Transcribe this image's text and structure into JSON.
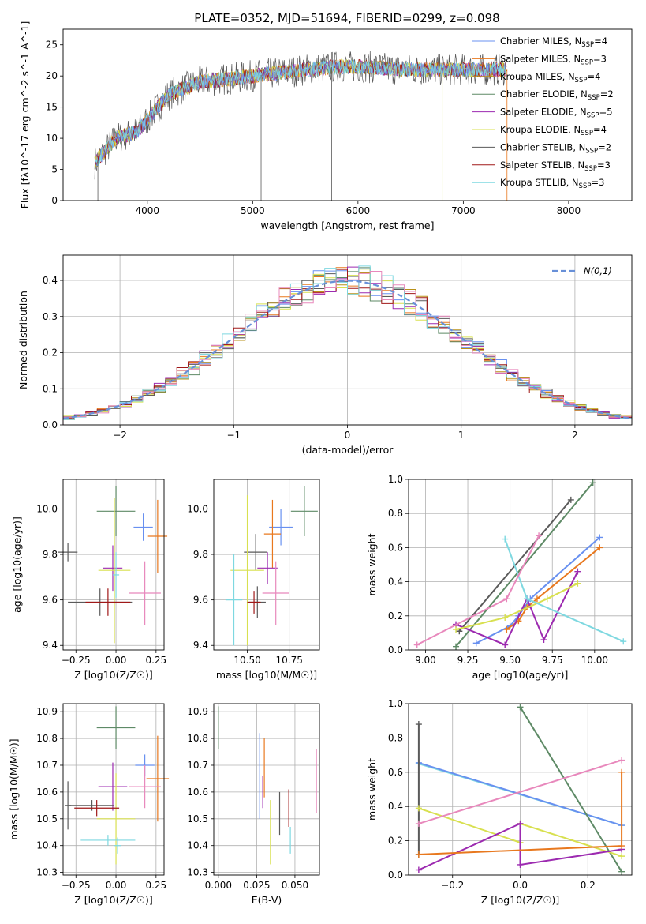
{
  "title": "PLATE=0352, MJD=51694, FIBERID=0299, z=0.098",
  "colors": [
    "#6890F0",
    "#E8781E",
    "#B89018",
    "#5E8A66",
    "#9C2AB0",
    "#D8E050",
    "#5A5A5A",
    "#A01818",
    "#7ED8E0"
  ],
  "extra_color": "#E888BC",
  "chart_data": [
    {
      "id": "spectrum",
      "type": "line",
      "xlabel": "wavelength [Angstrom, rest frame]",
      "ylabel": "Flux [fλ10^-17 erg cm^-2 s^-1 A^-1]",
      "xlim": [
        3200,
        8600
      ],
      "ylim": [
        0,
        27.5
      ],
      "xticks": [
        4000,
        5000,
        6000,
        7000,
        8000
      ],
      "yticks": [
        0,
        5,
        10,
        15,
        20,
        25
      ],
      "grid": false,
      "legend_position": "right",
      "legend": [
        "Chabrier MILES, N_SSP=4",
        "Salpeter MILES, N_SSP=3",
        "Kroupa MILES, N_SSP=4",
        "Chabrier ELODIE, N_SSP=2",
        "Salpeter ELODIE, N_SSP=5",
        "Kroupa ELODIE, N_SSP=4",
        "Chabrier STELIB, N_SSP=2",
        "Salpeter STELIB, N_SSP=3",
        "Kroupa STELIB, N_SSP=3"
      ],
      "continuum": {
        "x": [
          3500,
          3700,
          3900,
          4000,
          4200,
          4500,
          5000,
          5500,
          5800,
          6000,
          6500,
          7000,
          7400
        ],
        "y": [
          6,
          10,
          11,
          13,
          17,
          19,
          20,
          21,
          21.5,
          21.5,
          21,
          21,
          21
        ]
      }
    },
    {
      "id": "residuals",
      "type": "histogram",
      "xlabel": "(data-model)/error",
      "ylabel": "Normed distribution",
      "xlim": [
        -2.5,
        2.5
      ],
      "ylim": [
        0,
        0.47
      ],
      "xticks": [
        -2,
        -1,
        0,
        1,
        2
      ],
      "yticks": [
        0.0,
        0.1,
        0.2,
        0.3,
        0.4
      ],
      "grid": true,
      "legend": "N(0,1)",
      "legend_position": "top-right",
      "bins": {
        "start": -2.5,
        "width": 0.1,
        "count": 50
      }
    },
    {
      "id": "age_vs_Z",
      "type": "errorbar",
      "xlabel": "Z [log10(Z/Z☉)]",
      "ylabel": "age  [log10(age/yr)]",
      "xlim": [
        -0.33,
        0.3
      ],
      "ylim": [
        9.38,
        10.13
      ],
      "xticks": [
        -0.25,
        0.0,
        0.25
      ],
      "yticks": [
        9.4,
        9.6,
        9.8,
        10.0
      ],
      "grid": true,
      "points": [
        {
          "x": 0.17,
          "y": 9.92,
          "xerr": 0.06,
          "yerr": 0.06,
          "color": 0
        },
        {
          "x": 0.26,
          "y": 9.88,
          "xerr": 0.06,
          "yerr": 0.16,
          "color": 1
        },
        {
          "x": 0.0,
          "y": 9.99,
          "xerr": 0.12,
          "yerr": 0.11,
          "color": 3
        },
        {
          "x": -0.3,
          "y": 9.81,
          "xerr": 0.06,
          "yerr": 0.04,
          "color": 6
        },
        {
          "x": -0.02,
          "y": 9.74,
          "xerr": 0.06,
          "yerr": 0.1,
          "color": 4
        },
        {
          "x": -0.01,
          "y": 9.73,
          "xerr": 0.1,
          "yerr": 0.32,
          "color": 5
        },
        {
          "x": 0.0,
          "y": 9.71,
          "xerr": 0.02,
          "yerr": 0.1,
          "color": 8
        },
        {
          "x": -0.1,
          "y": 9.59,
          "xerr": 0.2,
          "yerr": 0.06,
          "color": 6
        },
        {
          "x": -0.05,
          "y": 9.59,
          "xerr": 0.14,
          "yerr": 0.06,
          "color": 7
        },
        {
          "x": 0.18,
          "y": 9.63,
          "xerr": 0.1,
          "yerr": 0.14,
          "color": 9
        }
      ]
    },
    {
      "id": "age_vs_mass",
      "type": "errorbar",
      "xlabel": "mass [log10(M/M☉)]",
      "ylabel": "",
      "xlim": [
        10.3,
        10.93
      ],
      "ylim": [
        9.38,
        10.13
      ],
      "xticks": [
        10.5,
        10.75
      ],
      "yticks": [
        9.4,
        9.6,
        9.8,
        10.0
      ],
      "grid": true,
      "points": [
        {
          "x": 10.7,
          "y": 9.92,
          "xerr": 0.07,
          "yerr": 0.08,
          "color": 0
        },
        {
          "x": 10.65,
          "y": 9.89,
          "xerr": 0.05,
          "yerr": 0.15,
          "color": 1
        },
        {
          "x": 10.84,
          "y": 9.99,
          "xerr": 0.08,
          "yerr": 0.11,
          "color": 3
        },
        {
          "x": 10.55,
          "y": 9.81,
          "xerr": 0.07,
          "yerr": 0.08,
          "color": 6
        },
        {
          "x": 10.62,
          "y": 9.74,
          "xerr": 0.06,
          "yerr": 0.07,
          "color": 4
        },
        {
          "x": 10.5,
          "y": 9.73,
          "xerr": 0.1,
          "yerr": 0.33,
          "color": 5
        },
        {
          "x": 10.42,
          "y": 9.6,
          "xerr": 0.05,
          "yerr": 0.2,
          "color": 8
        },
        {
          "x": 10.56,
          "y": 9.59,
          "xerr": 0.05,
          "yerr": 0.07,
          "color": 6
        },
        {
          "x": 10.54,
          "y": 9.59,
          "xerr": 0.04,
          "yerr": 0.05,
          "color": 7
        },
        {
          "x": 10.67,
          "y": 9.63,
          "xerr": 0.08,
          "yerr": 0.14,
          "color": 9
        }
      ]
    },
    {
      "id": "mw_vs_age",
      "type": "line",
      "xlabel": "age  [log10(age/yr)]",
      "ylabel": "mass weight",
      "xlim": [
        8.9,
        10.22
      ],
      "ylim": [
        0,
        1
      ],
      "xticks": [
        9.0,
        9.25,
        9.5,
        9.75,
        10.0
      ],
      "yticks": [
        0.0,
        0.2,
        0.4,
        0.6,
        0.8,
        1.0
      ],
      "grid": true,
      "series": [
        {
          "color": 0,
          "x": [
            9.3,
            9.5,
            9.55,
            9.62,
            10.03
          ],
          "y": [
            0.04,
            0.14,
            0.2,
            0.3,
            0.66
          ]
        },
        {
          "color": 1,
          "x": [
            9.48,
            9.55,
            9.6,
            9.66,
            10.03
          ],
          "y": [
            0.12,
            0.17,
            0.25,
            0.3,
            0.6
          ]
        },
        {
          "color": 3,
          "x": [
            9.18,
            9.99
          ],
          "y": [
            0.02,
            0.98
          ]
        },
        {
          "color": 6,
          "x": [
            9.2,
            9.86
          ],
          "y": [
            0.11,
            0.88
          ]
        },
        {
          "color": 4,
          "x": [
            9.18,
            9.47,
            9.6,
            9.7,
            9.9
          ],
          "y": [
            0.15,
            0.03,
            0.3,
            0.06,
            0.46
          ]
        },
        {
          "color": 5,
          "x": [
            9.18,
            9.47,
            9.72,
            9.9
          ],
          "y": [
            0.12,
            0.19,
            0.3,
            0.39
          ]
        },
        {
          "color": 8,
          "x": [
            9.47,
            9.6,
            10.17
          ],
          "y": [
            0.65,
            0.3,
            0.05
          ]
        },
        {
          "color": 9,
          "x": [
            8.95,
            9.48,
            9.67
          ],
          "y": [
            0.03,
            0.3,
            0.67
          ]
        }
      ]
    },
    {
      "id": "mass_vs_Z",
      "type": "errorbar",
      "xlabel": "Z [log10(Z/Z☉)]",
      "ylabel": "mass [log10(M/M☉)]",
      "xlim": [
        -0.33,
        0.3
      ],
      "ylim": [
        10.29,
        10.93
      ],
      "xticks": [
        -0.25,
        0.0,
        0.25
      ],
      "yticks": [
        10.3,
        10.4,
        10.5,
        10.6,
        10.7,
        10.8,
        10.9
      ],
      "grid": true,
      "points": [
        {
          "x": 0.18,
          "y": 10.7,
          "xerr": 0.06,
          "yerr": 0.04,
          "color": 0
        },
        {
          "x": 0.26,
          "y": 10.65,
          "xerr": 0.07,
          "yerr": 0.16,
          "color": 1
        },
        {
          "x": 0.0,
          "y": 10.84,
          "xerr": 0.12,
          "yerr": 0.08,
          "color": 3
        },
        {
          "x": -0.3,
          "y": 10.55,
          "xerr": 0.02,
          "yerr": 0.09,
          "color": 6
        },
        {
          "x": -0.02,
          "y": 10.62,
          "xerr": 0.09,
          "yerr": 0.09,
          "color": 4
        },
        {
          "x": 0.0,
          "y": 10.5,
          "xerr": 0.12,
          "yerr": 0.17,
          "color": 5
        },
        {
          "x": -0.05,
          "y": 10.42,
          "xerr": 0.17,
          "yerr": 0.02,
          "color": 8
        },
        {
          "x": -0.15,
          "y": 10.55,
          "xerr": 0.14,
          "yerr": 0.02,
          "color": 6
        },
        {
          "x": -0.12,
          "y": 10.54,
          "xerr": 0.14,
          "yerr": 0.03,
          "color": 7
        },
        {
          "x": 0.18,
          "y": 10.62,
          "xerr": 0.1,
          "yerr": 0.08,
          "color": 9
        },
        {
          "x": 0.01,
          "y": 10.4,
          "xerr": 0.02,
          "yerr": 0.03,
          "color": 8
        }
      ]
    },
    {
      "id": "mass_vs_ebv",
      "type": "errorbar",
      "xlabel": "E(B-V)",
      "ylabel": "",
      "xlim": [
        -0.003,
        0.066
      ],
      "ylim": [
        10.29,
        10.93
      ],
      "xticks": [
        0.0,
        0.025,
        0.05
      ],
      "yticks": [
        10.3,
        10.4,
        10.5,
        10.6,
        10.7,
        10.8,
        10.9
      ],
      "grid": true,
      "points": [
        {
          "x": 0.027,
          "y": 10.66,
          "yerr": 0.16,
          "color": 0
        },
        {
          "x": 0.03,
          "y": 10.69,
          "yerr": 0.11,
          "color": 1
        },
        {
          "x": 0.0,
          "y": 10.84,
          "yerr": 0.08,
          "color": 3
        },
        {
          "x": 0.04,
          "y": 10.52,
          "yerr": 0.08,
          "color": 6
        },
        {
          "x": 0.029,
          "y": 10.6,
          "yerr": 0.06,
          "color": 4
        },
        {
          "x": 0.034,
          "y": 10.45,
          "yerr": 0.12,
          "color": 5
        },
        {
          "x": 0.047,
          "y": 10.42,
          "yerr": 0.05,
          "color": 8
        },
        {
          "x": 0.046,
          "y": 10.54,
          "yerr": 0.07,
          "color": 7
        },
        {
          "x": 0.064,
          "y": 10.64,
          "yerr": 0.12,
          "color": 9
        }
      ]
    },
    {
      "id": "mw_vs_Z",
      "type": "line",
      "xlabel": "Z [log10(Z/Z☉)]",
      "ylabel": "mass weight",
      "xlim": [
        -0.33,
        0.33
      ],
      "ylim": [
        0,
        1
      ],
      "xticks": [
        -0.2,
        0.0,
        0.2
      ],
      "yticks": [
        0.0,
        0.2,
        0.4,
        0.6,
        0.8,
        1.0
      ],
      "grid": true,
      "series": [
        {
          "color": 8,
          "x": [
            -0.3,
            0.3
          ],
          "y": [
            0.65,
            0.29
          ]
        },
        {
          "color": 0,
          "x": [
            -0.3,
            0.3
          ],
          "y": [
            0.655,
            0.29
          ]
        },
        {
          "color": 3,
          "x": [
            0.0,
            0.3
          ],
          "y": [
            0.98,
            0.02
          ]
        },
        {
          "color": 6,
          "x": [
            -0.3,
            -0.3
          ],
          "y": [
            0.12,
            0.88
          ]
        },
        {
          "color": 5,
          "x": [
            -0.3,
            0.0,
            0.0,
            0.3
          ],
          "y": [
            0.39,
            0.19,
            0.3,
            0.11
          ]
        },
        {
          "color": 4,
          "x": [
            -0.3,
            0.0,
            0.0,
            0.3
          ],
          "y": [
            0.03,
            0.3,
            0.06,
            0.15
          ]
        },
        {
          "color": 1,
          "x": [
            -0.3,
            0.3,
            0.3
          ],
          "y": [
            0.12,
            0.17,
            0.6
          ]
        },
        {
          "color": 9,
          "x": [
            -0.3,
            0.3
          ],
          "y": [
            0.3,
            0.67
          ]
        }
      ]
    }
  ]
}
